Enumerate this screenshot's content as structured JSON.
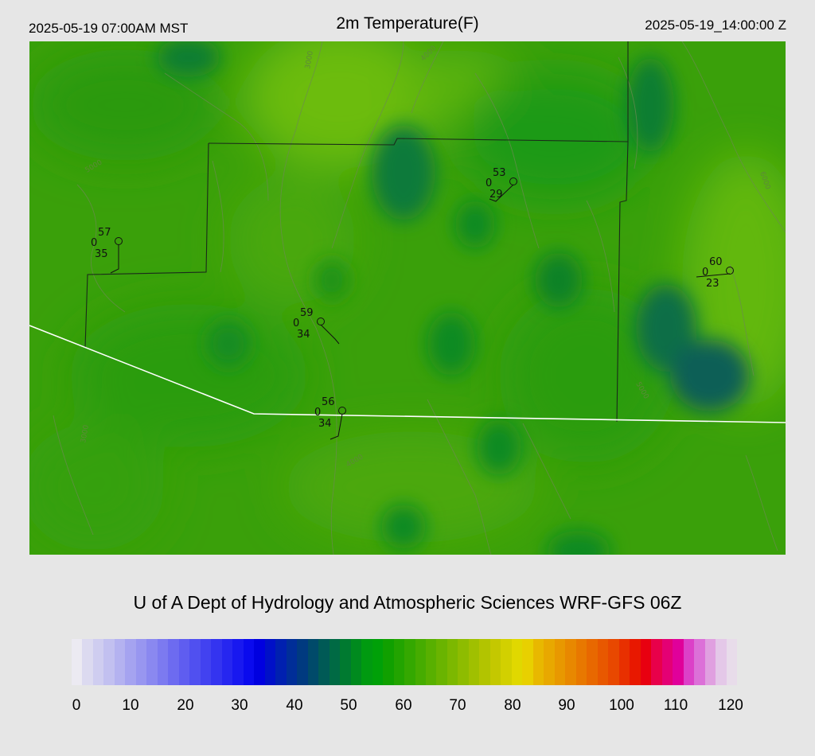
{
  "header": {
    "local_time": "2025-05-19 07:00AM MST",
    "title": "2m Temperature(F)",
    "valid_time": "2025-05-19_14:00:00 Z"
  },
  "credit": "U of A Dept of Hydrology and Atmospheric Sciences WRF-GFS 06Z",
  "colorbar": {
    "ticks": [
      "0",
      "10",
      "20",
      "30",
      "40",
      "50",
      "60",
      "70",
      "80",
      "90",
      "100",
      "110",
      "120"
    ],
    "colors": [
      "#eceaf2",
      "#dcdaf0",
      "#cfcdf0",
      "#c2c0f0",
      "#b4b2f0",
      "#a5a3f0",
      "#9896f0",
      "#8a88f0",
      "#7c7af0",
      "#6d6bf0",
      "#5f5df0",
      "#5050f0",
      "#4242f0",
      "#3434f0",
      "#2626f0",
      "#1818f0",
      "#0a0aee",
      "#0000e0",
      "#0010c8",
      "#0020b0",
      "#002e98",
      "#003a80",
      "#004a6a",
      "#005a56",
      "#006a44",
      "#007a30",
      "#008a1e",
      "#009a10",
      "#00a008",
      "#10a000",
      "#22a400",
      "#34a800",
      "#46ac00",
      "#58b000",
      "#6ab400",
      "#7cb800",
      "#8ebc00",
      "#a0c000",
      "#b2c400",
      "#c4c800",
      "#d2d000",
      "#e0d800",
      "#e8d000",
      "#e8b800",
      "#e8a800",
      "#e89800",
      "#e88800",
      "#e87800",
      "#e86800",
      "#e85800",
      "#e84800",
      "#e83000",
      "#e81800",
      "#e80010",
      "#e8004a",
      "#e40074",
      "#e0009a",
      "#dc40c8",
      "#dc70d8",
      "#e0a0e0",
      "#e4c8e8",
      "#e8dcea"
    ]
  },
  "stations": [
    {
      "temp": "57",
      "cloud": "0",
      "dew": "35"
    },
    {
      "temp": "53",
      "cloud": "0",
      "dew": "29"
    },
    {
      "temp": "60",
      "cloud": "0",
      "dew": "23"
    },
    {
      "temp": "59",
      "cloud": "0",
      "dew": "34"
    },
    {
      "temp": "56",
      "cloud": "0",
      "dew": "34"
    }
  ],
  "contour_labels": [
    "3000",
    "4000",
    "5000",
    "6000",
    "5000",
    "3000",
    "4000"
  ]
}
